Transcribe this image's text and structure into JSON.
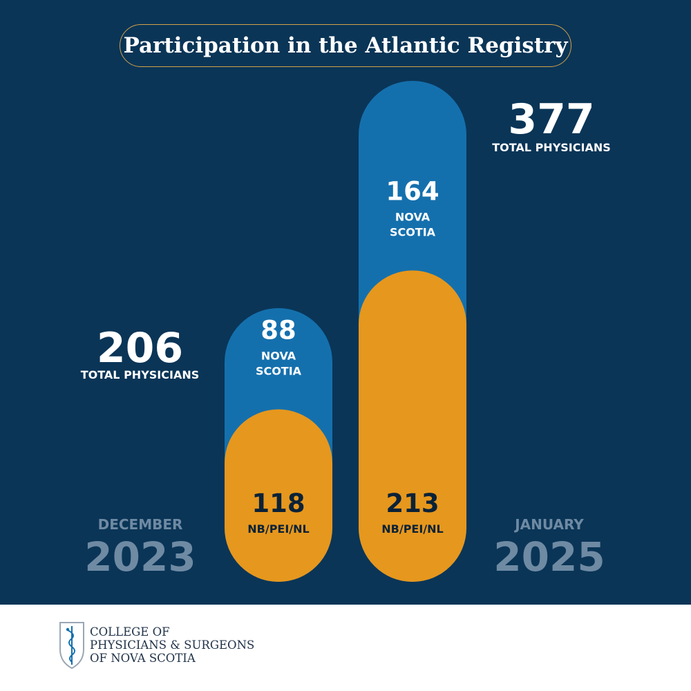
{
  "title": "Participation in the Atlantic Registry",
  "colors": {
    "background": "#0a3557",
    "nova_scotia": "#1470ad",
    "nb_pei_nl": "#e6971d",
    "title_border": "#d4a24a",
    "muted_text": "#6f8aa3"
  },
  "chart_data": {
    "type": "bar",
    "stacked": true,
    "categories": [
      "DECEMBER 2023",
      "JANUARY 2025"
    ],
    "period_labels": [
      {
        "month": "DECEMBER",
        "year": "2023"
      },
      {
        "month": "JANUARY",
        "year": "2025"
      }
    ],
    "series": [
      {
        "name": "NB/PEI/NL",
        "values": [
          118,
          213
        ],
        "value_labels": [
          "118",
          "213"
        ]
      },
      {
        "name": "NOVA SCOTIA",
        "values": [
          88,
          164
        ],
        "value_labels": [
          "88",
          "164"
        ]
      }
    ],
    "series_labels": {
      "nova_scotia": [
        "NOVA",
        "SCOTIA"
      ],
      "nb_pei_nl": [
        "NB/PEI/NL"
      ]
    },
    "totals": [
      {
        "value": "206",
        "label": "TOTAL PHYSICIANS"
      },
      {
        "value": "377",
        "label": "TOTAL PHYSICIANS"
      }
    ]
  },
  "footer": {
    "logo_lines": [
      "COLLEGE OF",
      "PHYSICIANS & SURGEONS",
      "OF NOVA SCOTIA"
    ],
    "logo_icon": "caduceus-shield-icon"
  }
}
